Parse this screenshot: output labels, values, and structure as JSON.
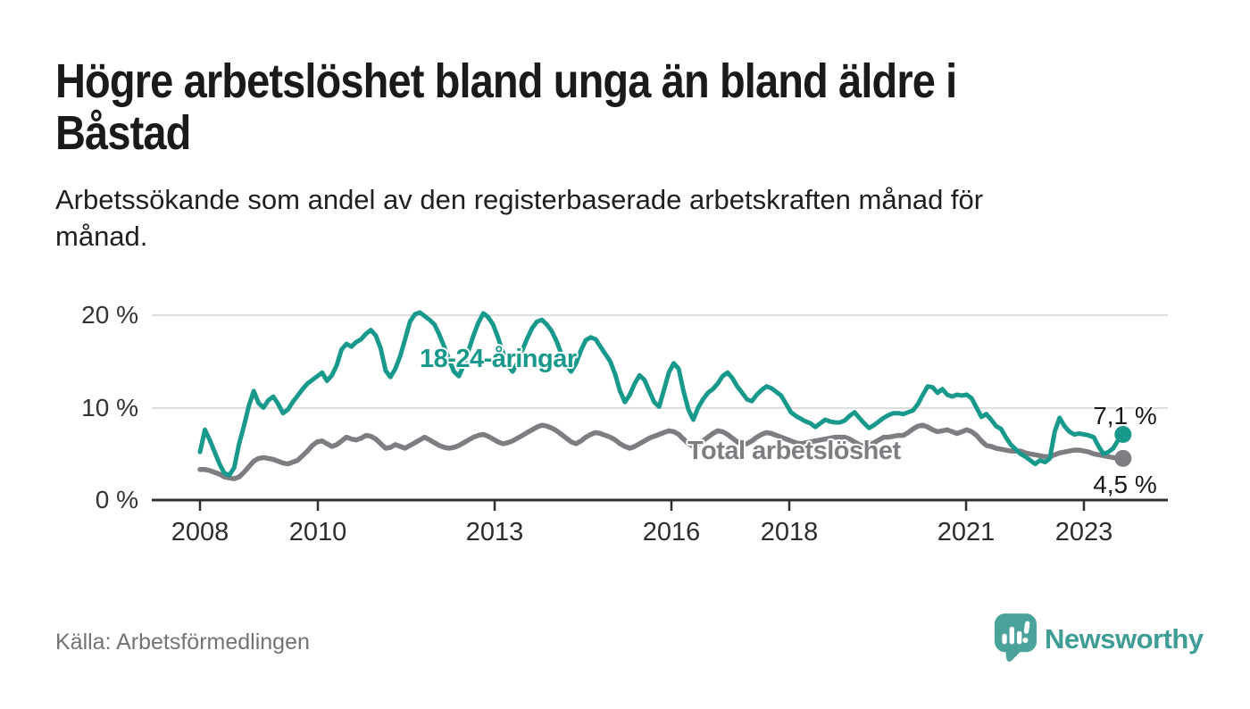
{
  "header": {
    "title": "Högre arbetslöshet bland unga än bland äldre i Båstad",
    "title_lines": [
      "Högre arbetslöshet bland unga än bland äldre i",
      "Båstad"
    ],
    "subtitle": "Arbetssökande som andel av den registerbaserade arbetskraften månad för månad.",
    "subtitle_lines": [
      "Arbetssökande som andel av den registerbaserade arbetskraften månad för",
      "månad."
    ]
  },
  "footer": {
    "source": "Källa: Arbetsförmedlingen",
    "brand": "Newsworthy"
  },
  "colors": {
    "accent_teal": "#18998C",
    "series_gray": "#7E7E82",
    "axis": "#2F2F2F",
    "gridline": "#D4D4D4",
    "text_dark": "#1A1A1A",
    "muted_text": "#737373",
    "logo_teal": "#3F9D96",
    "background": "#FFFFFF"
  },
  "chart_data": {
    "type": "line",
    "title": "Högre arbetslöshet bland unga än bland äldre i Båstad",
    "subtitle": "Arbetssökande som andel av den registerbaserade arbetskraften månad för månad.",
    "x_unit": "month",
    "x_start": "2008-01",
    "x_end": "2023-10",
    "x_tick_labels": [
      "2008",
      "2010",
      "2013",
      "2016",
      "2018",
      "2021",
      "2023"
    ],
    "x_tick_years": [
      2008,
      2010,
      2013,
      2016,
      2018,
      2021,
      2023
    ],
    "y_ticks": [
      20,
      10,
      0
    ],
    "y_tick_labels": [
      "20 %",
      "10 %",
      "0 %"
    ],
    "ylim": [
      0,
      21
    ],
    "grid": "horizontal",
    "legend_position": "inline-labels",
    "series": [
      {
        "name": "Total arbetslöshet",
        "label": "Total arbetslöshet",
        "color": "#7E7E82",
        "end_label": "4,5 %",
        "end_value": 4.5,
        "values": [
          3.3,
          3.3,
          3.2,
          3.0,
          2.8,
          2.5,
          2.4,
          2.3,
          2.5,
          3.0,
          3.6,
          4.2,
          4.5,
          4.6,
          4.5,
          4.4,
          4.2,
          4.0,
          3.9,
          4.1,
          4.3,
          4.8,
          5.3,
          5.9,
          6.3,
          6.4,
          6.1,
          5.8,
          6.0,
          6.4,
          6.8,
          6.6,
          6.5,
          6.7,
          7.0,
          6.9,
          6.6,
          6.1,
          5.6,
          5.7,
          6.0,
          5.8,
          5.6,
          5.9,
          6.2,
          6.5,
          6.8,
          6.5,
          6.2,
          5.9,
          5.7,
          5.6,
          5.7,
          5.9,
          6.2,
          6.5,
          6.8,
          7.0,
          7.1,
          6.9,
          6.6,
          6.3,
          6.1,
          6.2,
          6.4,
          6.7,
          7.0,
          7.3,
          7.6,
          7.9,
          8.1,
          8.0,
          7.8,
          7.5,
          7.1,
          6.7,
          6.3,
          6.1,
          6.4,
          6.8,
          7.1,
          7.3,
          7.2,
          7.0,
          6.8,
          6.5,
          6.1,
          5.8,
          5.6,
          5.8,
          6.1,
          6.4,
          6.7,
          6.9,
          7.1,
          7.3,
          7.5,
          7.4,
          7.1,
          6.6,
          6.1,
          5.8,
          6.0,
          6.4,
          6.8,
          7.2,
          7.5,
          7.4,
          7.1,
          6.7,
          6.3,
          6.0,
          6.1,
          6.4,
          6.8,
          7.1,
          7.3,
          7.2,
          7.0,
          6.8,
          6.6,
          6.4,
          6.2,
          6.1,
          6.2,
          6.3,
          6.4,
          6.5,
          6.6,
          6.7,
          6.8,
          6.8,
          6.8,
          6.6,
          6.3,
          6.0,
          5.8,
          5.9,
          6.2,
          6.5,
          6.8,
          6.8,
          6.9,
          7.0,
          7.0,
          7.3,
          7.7,
          8.0,
          8.1,
          7.9,
          7.6,
          7.4,
          7.5,
          7.6,
          7.4,
          7.2,
          7.4,
          7.6,
          7.4,
          7.0,
          6.4,
          5.9,
          5.8,
          5.6,
          5.5,
          5.4,
          5.3,
          5.3,
          5.3,
          5.1,
          5.0,
          4.9,
          4.8,
          4.7,
          4.7,
          4.9,
          5.1,
          5.2,
          5.3,
          5.4,
          5.4,
          5.3,
          5.2,
          5.0,
          4.9,
          4.8,
          4.7,
          4.6,
          4.5,
          4.5
        ]
      },
      {
        "name": "18-24-åringar",
        "label": "18-24-åringar",
        "color": "#18998C",
        "end_label": "7,1 %",
        "end_value": 7.1,
        "values": [
          5.2,
          7.6,
          6.5,
          5.2,
          3.9,
          2.9,
          2.7,
          3.5,
          6.1,
          8.0,
          10.2,
          11.8,
          10.5,
          10.0,
          10.8,
          11.2,
          10.4,
          9.4,
          9.8,
          10.6,
          11.3,
          12.0,
          12.6,
          13.0,
          13.4,
          13.8,
          12.9,
          13.5,
          14.6,
          16.3,
          16.9,
          16.6,
          17.1,
          17.4,
          18.0,
          18.4,
          17.8,
          16.4,
          14.0,
          13.3,
          14.2,
          15.6,
          17.4,
          19.3,
          20.1,
          20.3,
          19.9,
          19.5,
          19.0,
          17.9,
          16.6,
          15.2,
          13.9,
          13.4,
          14.6,
          16.2,
          17.8,
          19.2,
          20.2,
          19.8,
          19.0,
          17.6,
          16.0,
          14.6,
          13.9,
          14.8,
          16.2,
          17.5,
          18.6,
          19.3,
          19.5,
          19.0,
          18.3,
          17.2,
          15.8,
          14.6,
          13.9,
          14.8,
          16.2,
          17.3,
          17.6,
          17.4,
          16.6,
          15.8,
          15.0,
          13.6,
          11.8,
          10.6,
          11.4,
          12.6,
          13.5,
          13.0,
          11.8,
          10.6,
          10.1,
          11.9,
          13.8,
          14.8,
          14.2,
          11.8,
          9.8,
          8.7,
          10.0,
          10.9,
          11.6,
          12.0,
          12.6,
          13.4,
          13.8,
          13.2,
          12.3,
          11.6,
          10.9,
          10.7,
          11.4,
          11.9,
          12.3,
          12.1,
          11.7,
          11.3,
          10.4,
          9.5,
          9.1,
          8.8,
          8.5,
          8.3,
          7.9,
          8.3,
          8.7,
          8.5,
          8.4,
          8.4,
          8.6,
          9.1,
          9.5,
          8.9,
          8.3,
          7.8,
          8.1,
          8.5,
          8.9,
          9.2,
          9.4,
          9.4,
          9.3,
          9.5,
          9.7,
          10.4,
          11.4,
          12.3,
          12.2,
          11.6,
          12.0,
          11.4,
          11.2,
          11.4,
          11.3,
          11.4,
          11.0,
          10.0,
          9.0,
          9.3,
          8.7,
          8.0,
          7.7,
          6.8,
          6.0,
          5.5,
          5.0,
          4.7,
          4.3,
          3.9,
          4.3,
          4.1,
          4.5,
          7.4,
          8.9,
          8.0,
          7.4,
          7.1,
          7.2,
          7.1,
          7.0,
          6.8,
          5.8,
          5.0,
          5.2,
          5.6,
          6.5,
          7.1
        ]
      }
    ]
  }
}
